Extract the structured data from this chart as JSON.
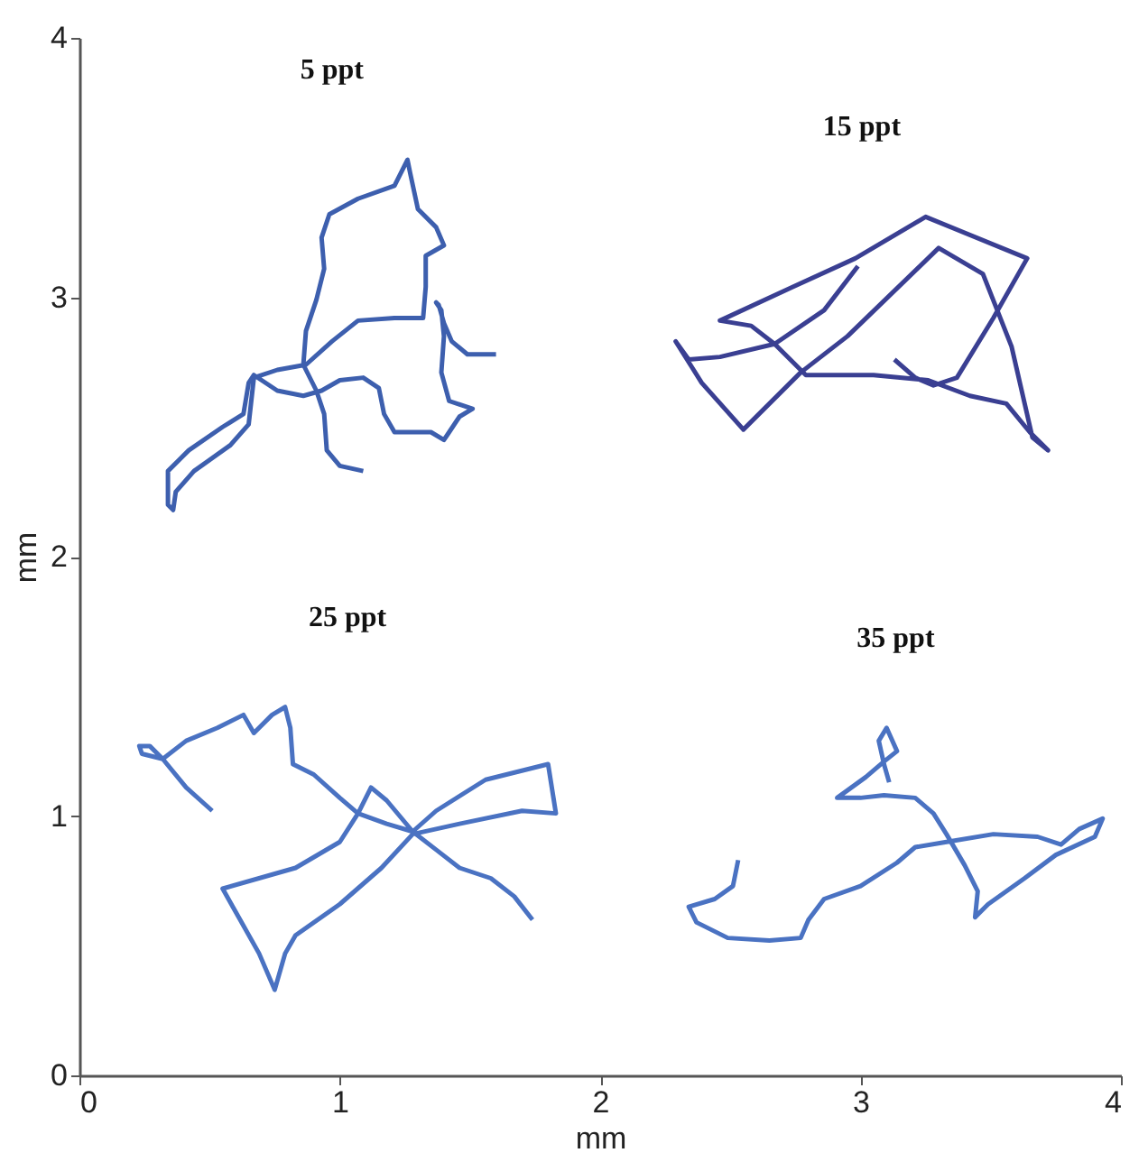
{
  "chart_data": {
    "type": "line",
    "xlabel": "mm",
    "ylabel": "mm",
    "xlim": [
      0,
      4
    ],
    "ylim": [
      0,
      4
    ],
    "xticks": [
      0,
      1,
      2,
      3,
      4
    ],
    "yticks": [
      0,
      1,
      2,
      3,
      4
    ],
    "marker": "none",
    "line_style": "solid",
    "series": [
      {
        "name": "5 ppt",
        "color": "#3d5fae",
        "x": [
          1.6,
          1.49,
          1.43,
          1.4,
          1.38,
          1.37,
          1.39,
          1.4,
          1.39,
          1.42,
          1.51,
          1.46,
          1.42,
          1.4,
          1.35,
          1.21,
          1.17,
          1.15,
          1.09,
          1.0,
          0.93,
          0.86,
          0.76,
          0.67,
          0.65,
          0.63,
          0.55,
          0.42,
          0.34,
          0.34,
          0.36,
          0.37,
          0.44,
          0.58,
          0.65,
          0.67,
          0.76,
          0.87,
          0.97,
          1.07,
          1.21,
          1.32,
          1.33,
          1.33,
          1.4,
          1.37,
          1.3,
          1.27,
          1.26,
          1.21,
          1.07,
          0.96,
          0.93,
          0.94,
          0.91,
          0.87,
          0.86,
          0.91,
          0.94,
          0.95,
          1.0,
          1.09
        ],
        "values": [
          2.78,
          2.78,
          2.83,
          2.9,
          2.97,
          2.98,
          2.95,
          2.85,
          2.71,
          2.6,
          2.57,
          2.54,
          2.48,
          2.45,
          2.48,
          2.48,
          2.55,
          2.65,
          2.69,
          2.68,
          2.64,
          2.62,
          2.64,
          2.7,
          2.67,
          2.55,
          2.5,
          2.41,
          2.33,
          2.2,
          2.18,
          2.25,
          2.33,
          2.43,
          2.51,
          2.69,
          2.72,
          2.74,
          2.83,
          2.91,
          2.92,
          2.92,
          3.04,
          3.16,
          3.2,
          3.27,
          3.34,
          3.48,
          3.53,
          3.43,
          3.38,
          3.32,
          3.23,
          3.11,
          2.99,
          2.87,
          2.74,
          2.64,
          2.55,
          2.41,
          2.35,
          2.33
        ]
      },
      {
        "name": "15 ppt",
        "color": "#3a3f92",
        "x": [
          3.13,
          3.21,
          3.28,
          3.37,
          3.51,
          3.64,
          3.25,
          2.98,
          2.74,
          2.46,
          2.58,
          2.67,
          2.79,
          3.05,
          3.26,
          3.42,
          3.56,
          3.65,
          3.72,
          3.66,
          3.58,
          3.47,
          3.3,
          2.95,
          2.77,
          2.55,
          2.39,
          2.29,
          2.34,
          2.46,
          2.67,
          2.86,
          2.99
        ],
        "values": [
          2.76,
          2.69,
          2.66,
          2.69,
          2.92,
          3.15,
          3.31,
          3.15,
          3.04,
          2.91,
          2.89,
          2.82,
          2.7,
          2.7,
          2.68,
          2.62,
          2.59,
          2.48,
          2.41,
          2.46,
          2.81,
          3.09,
          3.19,
          2.85,
          2.71,
          2.49,
          2.67,
          2.83,
          2.76,
          2.77,
          2.82,
          2.95,
          3.12
        ]
      },
      {
        "name": "25 ppt",
        "color": "#4a72c2",
        "x": [
          0.51,
          0.41,
          0.32,
          0.24,
          0.23,
          0.27,
          0.32,
          0.41,
          0.53,
          0.63,
          0.67,
          0.74,
          0.79,
          0.81,
          0.82,
          0.9,
          1.0,
          1.07,
          1.18,
          1.28,
          1.37,
          1.56,
          1.8,
          1.83,
          1.7,
          1.46,
          1.28,
          1.16,
          1.0,
          0.83,
          0.79,
          0.75,
          0.69,
          0.55,
          0.83,
          1.0,
          1.07,
          1.12,
          1.18,
          1.28,
          1.37,
          1.46,
          1.58,
          1.67,
          1.74
        ],
        "values": [
          1.02,
          1.11,
          1.22,
          1.24,
          1.27,
          1.27,
          1.22,
          1.29,
          1.34,
          1.39,
          1.32,
          1.39,
          1.42,
          1.34,
          1.2,
          1.16,
          1.07,
          1.01,
          0.97,
          0.94,
          1.02,
          1.14,
          1.2,
          1.01,
          1.02,
          0.97,
          0.93,
          0.8,
          0.66,
          0.54,
          0.47,
          0.33,
          0.47,
          0.72,
          0.8,
          0.9,
          1.01,
          1.11,
          1.06,
          0.94,
          0.87,
          0.8,
          0.76,
          0.69,
          0.6
        ]
      },
      {
        "name": "35 ppt",
        "color": "#4a72c2",
        "x": [
          2.53,
          2.51,
          2.44,
          2.34,
          2.37,
          2.49,
          2.65,
          2.77,
          2.8,
          2.86,
          3.0,
          3.14,
          3.21,
          3.33,
          3.51,
          3.68,
          3.77,
          3.84,
          3.93,
          3.9,
          3.75,
          3.63,
          3.49,
          3.44,
          3.45,
          3.4,
          3.33,
          3.28,
          3.21,
          3.09,
          3.0,
          2.91,
          3.02,
          3.09,
          3.14,
          3.1,
          3.07,
          3.09,
          3.11
        ],
        "values": [
          0.83,
          0.73,
          0.68,
          0.65,
          0.59,
          0.53,
          0.52,
          0.53,
          0.6,
          0.68,
          0.73,
          0.82,
          0.88,
          0.9,
          0.93,
          0.92,
          0.89,
          0.95,
          0.99,
          0.92,
          0.85,
          0.76,
          0.66,
          0.61,
          0.71,
          0.81,
          0.93,
          1.01,
          1.07,
          1.08,
          1.07,
          1.07,
          1.15,
          1.21,
          1.25,
          1.34,
          1.29,
          1.2,
          1.13
        ]
      }
    ]
  }
}
